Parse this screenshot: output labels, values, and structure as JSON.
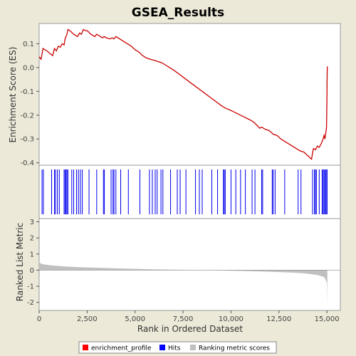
{
  "chart_data": {
    "type": "line",
    "title": "GSEA_Results",
    "panels": {
      "enrichment": {
        "ylabel": "Enrichment Score (ES)",
        "ylim": [
          -0.41,
          0.185
        ],
        "yticks": [
          0.1,
          0.0,
          -0.1,
          -0.2,
          -0.3,
          -0.4
        ],
        "ytick_labels": [
          "0.1",
          "0.0",
          "-0.1",
          "-0.2",
          "-0.3",
          "-0.4"
        ],
        "series": [
          {
            "kind": "enrichment_profile",
            "color": "#cc0000",
            "x": [
              0,
              100,
              200,
              400,
              700,
              800,
              900,
              1000,
              1100,
              1200,
              1300,
              1350,
              1400,
              1450,
              1500,
              1600,
              1800,
              2000,
              2100,
              2200,
              2300,
              2400,
              2500,
              2700,
              2900,
              3000,
              3200,
              3300,
              3400,
              3500,
              3700,
              3800,
              3900,
              4000,
              4200,
              4400,
              4600,
              4800,
              5000,
              5200,
              5400,
              5600,
              5800,
              6000,
              6200,
              6400,
              6600,
              6800,
              7000,
              7500,
              8000,
              8500,
              9000,
              9500,
              9700,
              10000,
              10500,
              11000,
              11200,
              11500,
              11600,
              11800,
              12000,
              12200,
              12400,
              12600,
              12800,
              13000,
              13200,
              13400,
              13600,
              13800,
              14000,
              14200,
              14250,
              14300,
              14400,
              14500,
              14600,
              14700,
              14800,
              14850,
              14900,
              14950,
              14980,
              15000,
              15010,
              15022
            ],
            "y": [
              0.045,
              0.035,
              0.08,
              0.07,
              0.05,
              0.08,
              0.07,
              0.09,
              0.085,
              0.1,
              0.095,
              0.12,
              0.13,
              0.14,
              0.16,
              0.155,
              0.14,
              0.13,
              0.145,
              0.14,
              0.16,
              0.155,
              0.155,
              0.14,
              0.13,
              0.14,
              0.13,
              0.125,
              0.13,
              0.125,
              0.12,
              0.125,
              0.12,
              0.13,
              0.12,
              0.11,
              0.1,
              0.09,
              0.075,
              0.065,
              0.05,
              0.04,
              0.035,
              0.03,
              0.025,
              0.02,
              0.01,
              0.0,
              -0.01,
              -0.04,
              -0.07,
              -0.1,
              -0.13,
              -0.16,
              -0.17,
              -0.18,
              -0.2,
              -0.22,
              -0.23,
              -0.255,
              -0.25,
              -0.26,
              -0.265,
              -0.28,
              -0.285,
              -0.3,
              -0.31,
              -0.32,
              -0.33,
              -0.34,
              -0.35,
              -0.355,
              -0.37,
              -0.385,
              -0.36,
              -0.34,
              -0.345,
              -0.33,
              -0.335,
              -0.32,
              -0.3,
              -0.285,
              -0.3,
              -0.27,
              -0.25,
              -0.15,
              -0.05,
              0.005
            ]
          }
        ]
      },
      "hits": {
        "color": "#0000ee",
        "positions": [
          150,
          220,
          650,
          800,
          850,
          950,
          1050,
          1300,
          1350,
          1400,
          1450,
          1500,
          1700,
          1800,
          1950,
          2050,
          2150,
          2250,
          2600,
          3000,
          3350,
          3400,
          3750,
          3850,
          3900,
          4000,
          4250,
          4650,
          5250,
          5750,
          5900,
          6050,
          6150,
          6350,
          6450,
          6850,
          7200,
          7350,
          7650,
          8150,
          8350,
          8500,
          9000,
          9300,
          9600,
          9650,
          9700,
          10000,
          10250,
          10500,
          10750,
          11100,
          11250,
          11600,
          11650,
          12150,
          12200,
          12300,
          12800,
          13500,
          13650,
          14250,
          14350,
          14400,
          14450,
          14600,
          14750,
          14800,
          14850,
          14900,
          14950,
          15000,
          15010
        ]
      },
      "ranking": {
        "ylabel": "Ranked List Metric",
        "ylim": [
          -2.5,
          3.2
        ],
        "yticks": [
          3,
          2,
          1,
          0,
          -1,
          -2
        ],
        "ytick_labels": [
          "3",
          "2",
          "1",
          "0",
          "-1",
          "-2"
        ],
        "color": "#c0c0c0",
        "x": [
          0,
          50,
          100,
          300,
          600,
          1000,
          1500,
          2000,
          3000,
          4000,
          5000,
          6000,
          7000,
          8000,
          8800,
          9500,
          10500,
          11500,
          12500,
          13500,
          14000,
          14500,
          14800,
          14900,
          14950,
          15000,
          15010,
          15022
        ],
        "values": [
          0.55,
          0.45,
          0.4,
          0.35,
          0.3,
          0.26,
          0.22,
          0.19,
          0.15,
          0.11,
          0.08,
          0.05,
          0.03,
          0.01,
          0.0,
          -0.02,
          -0.05,
          -0.08,
          -0.12,
          -0.17,
          -0.22,
          -0.3,
          -0.4,
          -0.5,
          -0.65,
          -0.8,
          -1.3,
          -2.2
        ]
      }
    },
    "xlabel": "Rank in Ordered Dataset",
    "xlim": [
      0,
      15700
    ],
    "xticks": [
      0,
      2500,
      5000,
      7500,
      10000,
      12500,
      15000
    ],
    "xtick_labels": [
      "0",
      "2,500",
      "5,000",
      "7,500",
      "10,000",
      "12,500",
      "15,000"
    ],
    "legend": {
      "placement": "bottom-center",
      "entries": [
        {
          "label": "enrichment_profile",
          "color": "#ff0000"
        },
        {
          "label": "Hits",
          "color": "#0000ff"
        },
        {
          "label": "Ranking metric scores",
          "color": "#c0c0c0"
        }
      ]
    }
  }
}
